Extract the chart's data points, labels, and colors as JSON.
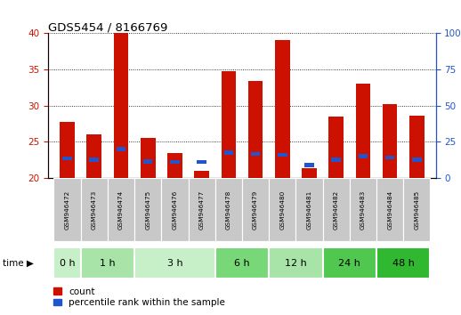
{
  "title": "GDS5454 / 8166769",
  "samples": [
    "GSM946472",
    "GSM946473",
    "GSM946474",
    "GSM946475",
    "GSM946476",
    "GSM946477",
    "GSM946478",
    "GSM946479",
    "GSM946480",
    "GSM946481",
    "GSM946482",
    "GSM946483",
    "GSM946484",
    "GSM946485"
  ],
  "red_values": [
    27.8,
    26.0,
    40.0,
    25.5,
    23.4,
    21.0,
    34.8,
    33.4,
    39.0,
    21.3,
    28.5,
    33.0,
    30.2,
    28.6
  ],
  "blue_values": [
    22.7,
    22.5,
    24.0,
    22.3,
    22.2,
    22.2,
    23.5,
    23.3,
    23.2,
    21.8,
    22.5,
    23.0,
    22.8,
    22.5
  ],
  "time_groups": [
    {
      "label": "0 h",
      "count": 1,
      "color": "#c8f0c8"
    },
    {
      "label": "1 h",
      "count": 2,
      "color": "#a8e4a8"
    },
    {
      "label": "3 h",
      "count": 3,
      "color": "#c8f0c8"
    },
    {
      "label": "6 h",
      "count": 2,
      "color": "#78d878"
    },
    {
      "label": "12 h",
      "count": 2,
      "color": "#a8e4a8"
    },
    {
      "label": "24 h",
      "count": 2,
      "color": "#50c850"
    },
    {
      "label": "48 h",
      "count": 2,
      "color": "#30b830"
    }
  ],
  "ylim_left": [
    20,
    40
  ],
  "ylim_right": [
    0,
    100
  ],
  "yticks_left": [
    20,
    25,
    30,
    35,
    40
  ],
  "yticks_right": [
    0,
    25,
    50,
    75,
    100
  ],
  "red_color": "#cc1100",
  "blue_color": "#2255cc",
  "left_tick_color": "#cc1100",
  "right_tick_color": "#2255cc",
  "bar_bottom": 20,
  "sample_col_bg": "#c8c8c8"
}
